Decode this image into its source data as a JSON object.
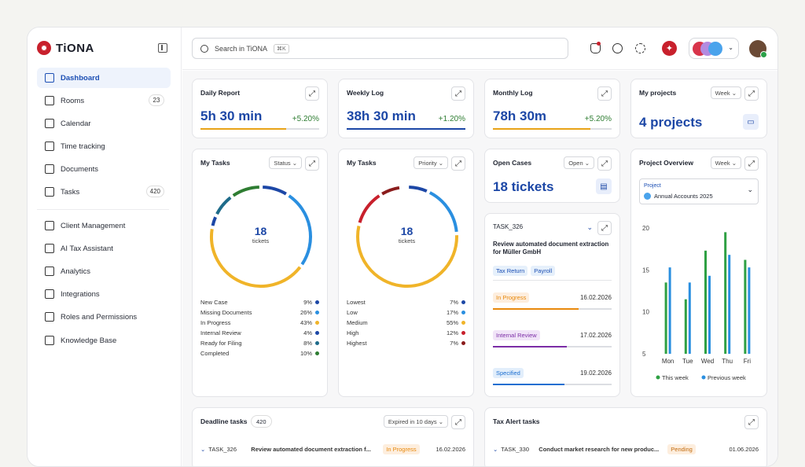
{
  "brand": {
    "name": "TiONA",
    "color": "#c8202c"
  },
  "sidebar": {
    "items": [
      {
        "label": "Dashboard",
        "icon": "grid-icon",
        "active": true
      },
      {
        "label": "Rooms",
        "icon": "door-icon",
        "badge": "23"
      },
      {
        "label": "Calendar",
        "icon": "calendar-icon"
      },
      {
        "label": "Time tracking",
        "icon": "clock-icon"
      },
      {
        "label": "Documents",
        "icon": "document-icon"
      },
      {
        "label": "Tasks",
        "icon": "task-icon",
        "badge": "420"
      },
      {
        "label": "Client Management",
        "icon": "building-icon"
      },
      {
        "label": "AI Tax Assistant",
        "icon": "sparkle-icon"
      },
      {
        "label": "Analytics",
        "icon": "chart-icon"
      },
      {
        "label": "Integrations",
        "icon": "plug-icon"
      },
      {
        "label": "Roles and Permissions",
        "icon": "users-icon"
      },
      {
        "label": "Knowledge Base",
        "icon": "bulb-icon"
      }
    ]
  },
  "search": {
    "placeholder": "Search in TiONA",
    "shortcut": "⌘K"
  },
  "daily": {
    "title": "Daily Report",
    "value": "5h 30 min",
    "change": "+5.20%",
    "progress": 0.72,
    "color": "#e8a317"
  },
  "weekly": {
    "title": "Weekly Log",
    "value": "38h 30 min",
    "change": "+1.20%",
    "progress": 1.0,
    "color": "#1c47a6"
  },
  "monthly": {
    "title": "Monthly Log",
    "value": "78h 30m",
    "change": "+5.20%",
    "progress": 0.82,
    "color": "#e8a317"
  },
  "projects": {
    "title": "My projects",
    "filter": "Week",
    "value": "4 projects"
  },
  "tasks_status": {
    "title": "My Tasks",
    "filter": "Status",
    "total": "18",
    "unit": "tickets",
    "items": [
      {
        "label": "New Case",
        "pct": "9%",
        "color": "#1c47a6"
      },
      {
        "label": "Missing Documents",
        "pct": "26%",
        "color": "#2a8fe0"
      },
      {
        "label": "In Progress",
        "pct": "43%",
        "color": "#f0b429"
      },
      {
        "label": "Internal Review",
        "pct": "4%",
        "color": "#1c47a6"
      },
      {
        "label": "Ready for Filing",
        "pct": "8%",
        "color": "#1e6b8a"
      },
      {
        "label": "Completed",
        "pct": "10%",
        "color": "#2e7d32"
      }
    ]
  },
  "tasks_priority": {
    "title": "My Tasks",
    "filter": "Priority",
    "total": "18",
    "unit": "tickets",
    "items": [
      {
        "label": "Lowest",
        "pct": "7%",
        "color": "#1c47a6"
      },
      {
        "label": "Low",
        "pct": "17%",
        "color": "#2a8fe0"
      },
      {
        "label": "Medium",
        "pct": "55%",
        "color": "#f0b429"
      },
      {
        "label": "High",
        "pct": "12%",
        "color": "#c8202c"
      },
      {
        "label": "Highest",
        "pct": "7%",
        "color": "#8a1c1c"
      }
    ]
  },
  "open_cases": {
    "title": "Open Cases",
    "filter": "Open",
    "value": "18 tickets"
  },
  "task_card": {
    "id": "TASK_326",
    "title": "Review automated document extraction for Müller GmbH",
    "tags": [
      "Tax Return",
      "Payroll"
    ],
    "statuses": [
      {
        "label": "In Progress",
        "date": "16.02.2026",
        "color": "#e8890c",
        "bg": "#fdeede",
        "progress": 0.72
      },
      {
        "label": "Internal Review",
        "date": "17.02.2026",
        "color": "#7b2ca6",
        "bg": "#f1e4f8",
        "progress": 0.62
      },
      {
        "label": "Specified",
        "date": "19.02.2026",
        "color": "#1c6fd1",
        "bg": "#e2eefb",
        "progress": 0.6
      }
    ]
  },
  "project_overview": {
    "title": "Project Overview",
    "filter": "Week",
    "project_label": "Project",
    "project_name": "Annual Accounts 2025"
  },
  "chart_data": {
    "type": "bar",
    "categories": [
      "Mon",
      "Tue",
      "Wed",
      "Thu",
      "Fri"
    ],
    "series": [
      {
        "name": "This week",
        "color": "#2ea043",
        "values": [
          13.5,
          11.5,
          17.3,
          19.5,
          16.2
        ]
      },
      {
        "name": "Previous week",
        "color": "#2a8fe0",
        "values": [
          15.3,
          13.5,
          14.3,
          16.8,
          15.3
        ]
      }
    ],
    "ylim": [
      5,
      20
    ],
    "yticks": [
      "20",
      "15",
      "10",
      "5"
    ]
  },
  "deadline": {
    "title": "Deadline tasks",
    "count": "420",
    "filter": "Expired in 10 days",
    "row": {
      "id": "TASK_326",
      "title": "Review automated document extraction f...",
      "status": "In Progress",
      "date": "16.02.2026"
    }
  },
  "tax_alert": {
    "title": "Tax Alert tasks",
    "row": {
      "id": "TASK_330",
      "title": "Conduct market research for new produc...",
      "status": "Pending",
      "date": "01.06.2026"
    }
  }
}
